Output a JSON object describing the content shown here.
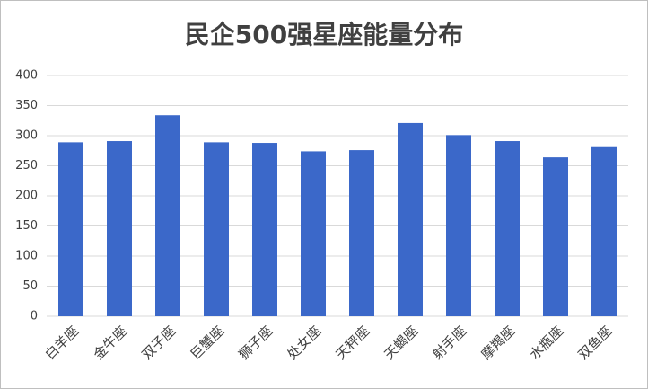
{
  "chart_data": {
    "type": "bar",
    "title": "民企500强星座能量分布",
    "categories": [
      "白羊座",
      "金牛座",
      "双子座",
      "巨蟹座",
      "狮子座",
      "处女座",
      "天秤座",
      "天蝎座",
      "射手座",
      "摩羯座",
      "水瓶座",
      "双鱼座"
    ],
    "values": [
      289,
      291,
      334,
      289,
      288,
      274,
      276,
      321,
      301,
      291,
      264,
      281
    ],
    "color": "#3b68c9",
    "ylim": [
      0,
      400
    ],
    "yticks": [
      0,
      50,
      100,
      150,
      200,
      250,
      300,
      350,
      400
    ],
    "grid": true
  }
}
